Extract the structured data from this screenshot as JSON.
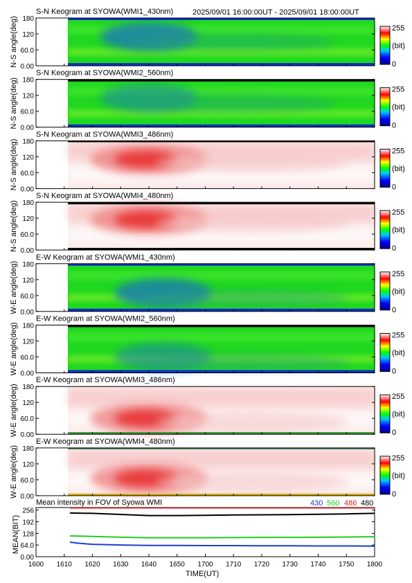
{
  "header": {
    "time_range": "2025/09/01 16:00:00UT - 2025/09/01 18:00:00UT"
  },
  "keograms": [
    {
      "title": "S-N Keogram at SYOWA(WMI1_430nm)",
      "ylabel": "N-S angle(deg)",
      "colormap": "blue-green",
      "peak_center_min": 40,
      "peak_angle_deg": 110
    },
    {
      "title": "S-N Keogram at SYOWA(WMI2_560nm)",
      "ylabel": "N-S angle(deg)",
      "colormap": "green",
      "peak_center_min": 40,
      "peak_angle_deg": 110
    },
    {
      "title": "S-N Keogram at SYOWA(WMI3_486nm)",
      "ylabel": "N-S angle(deg)",
      "colormap": "red-white",
      "peak_center_min": 40,
      "peak_angle_deg": 110
    },
    {
      "title": "S-N Keogram at SYOWA(WMI4_480nm)",
      "ylabel": "N-S angle(deg)",
      "colormap": "red-white",
      "peak_center_min": 40,
      "peak_angle_deg": 115
    },
    {
      "title": "E-W Keogram at SYOWA(WMI1_430nm)",
      "ylabel": "W-E angle(deg)",
      "colormap": "blue-green",
      "peak_center_min": 45,
      "peak_angle_deg": 70
    },
    {
      "title": "E-W Keogram at SYOWA(WMI2_560nm)",
      "ylabel": "W-E angle(deg)",
      "colormap": "green",
      "peak_center_min": 45,
      "peak_angle_deg": 60
    },
    {
      "title": "E-W Keogram at SYOWA(WMI3_486nm)",
      "ylabel": "W-E angle(deg)",
      "colormap": "red-white",
      "peak_center_min": 40,
      "peak_angle_deg": 60
    },
    {
      "title": "E-W Keogram at SYOWA(WMI4_480nm)",
      "ylabel": "W-E angle(deg)",
      "colormap": "red-white",
      "peak_center_min": 40,
      "peak_angle_deg": 65
    }
  ],
  "keogram_yticks": [
    "0.00",
    "60.0",
    "120",
    "180"
  ],
  "keogram_yticks_first": [
    "0.00",
    "60.0",
    "120",
    "180"
  ],
  "colorbar": {
    "max_label": "255",
    "unit_label": "(bit)",
    "min_label": "0"
  },
  "chart_data": {
    "type": "line",
    "title": "Mean intensity in FOV of Syowa WMI",
    "xlabel": "TIME(UT)",
    "ylabel": "MEAN(BIT)",
    "x_ticks": [
      "1600",
      "1610",
      "1620",
      "1630",
      "1640",
      "1650",
      "1700",
      "1710",
      "1720",
      "1730",
      "1740",
      "1750",
      "1800"
    ],
    "y_ticks": [
      "0.00",
      "64.0",
      "128",
      "192",
      "256"
    ],
    "xlim_min": [
      0,
      120
    ],
    "ylim": [
      0,
      270
    ],
    "legend": [
      {
        "label": "430",
        "color": "#1a3fd0"
      },
      {
        "label": "560",
        "color": "#22cc22"
      },
      {
        "label": "486",
        "color": "#dd2222"
      },
      {
        "label": "480",
        "color": "#000000"
      }
    ],
    "series": [
      {
        "name": "430",
        "color": "#1a3fd0",
        "x": [
          12,
          15,
          20,
          30,
          40,
          50,
          60,
          70,
          80,
          90,
          100,
          110,
          120
        ],
        "y": [
          80,
          74,
          68,
          64,
          62,
          62,
          61,
          61,
          60,
          60,
          59,
          59,
          58
        ]
      },
      {
        "name": "560",
        "color": "#22cc22",
        "x": [
          12,
          15,
          20,
          30,
          40,
          50,
          60,
          70,
          80,
          90,
          100,
          110,
          120
        ],
        "y": [
          114,
          113,
          111,
          107,
          104,
          104,
          104,
          105,
          106,
          106,
          107,
          108,
          110
        ]
      },
      {
        "name": "486",
        "color": "#dd2222",
        "x": [
          12,
          20,
          30,
          40,
          50,
          60,
          70,
          80,
          90,
          100,
          110,
          120
        ],
        "y": [
          268,
          268,
          268,
          268,
          268,
          268,
          268,
          268,
          268,
          268,
          268,
          268
        ]
      },
      {
        "name": "480",
        "color": "#000000",
        "x": [
          12,
          20,
          30,
          40,
          50,
          60,
          70,
          80,
          90,
          100,
          110,
          120
        ],
        "y": [
          240,
          238,
          232,
          226,
          226,
          227,
          229,
          230,
          231,
          233,
          235,
          238
        ]
      }
    ]
  }
}
